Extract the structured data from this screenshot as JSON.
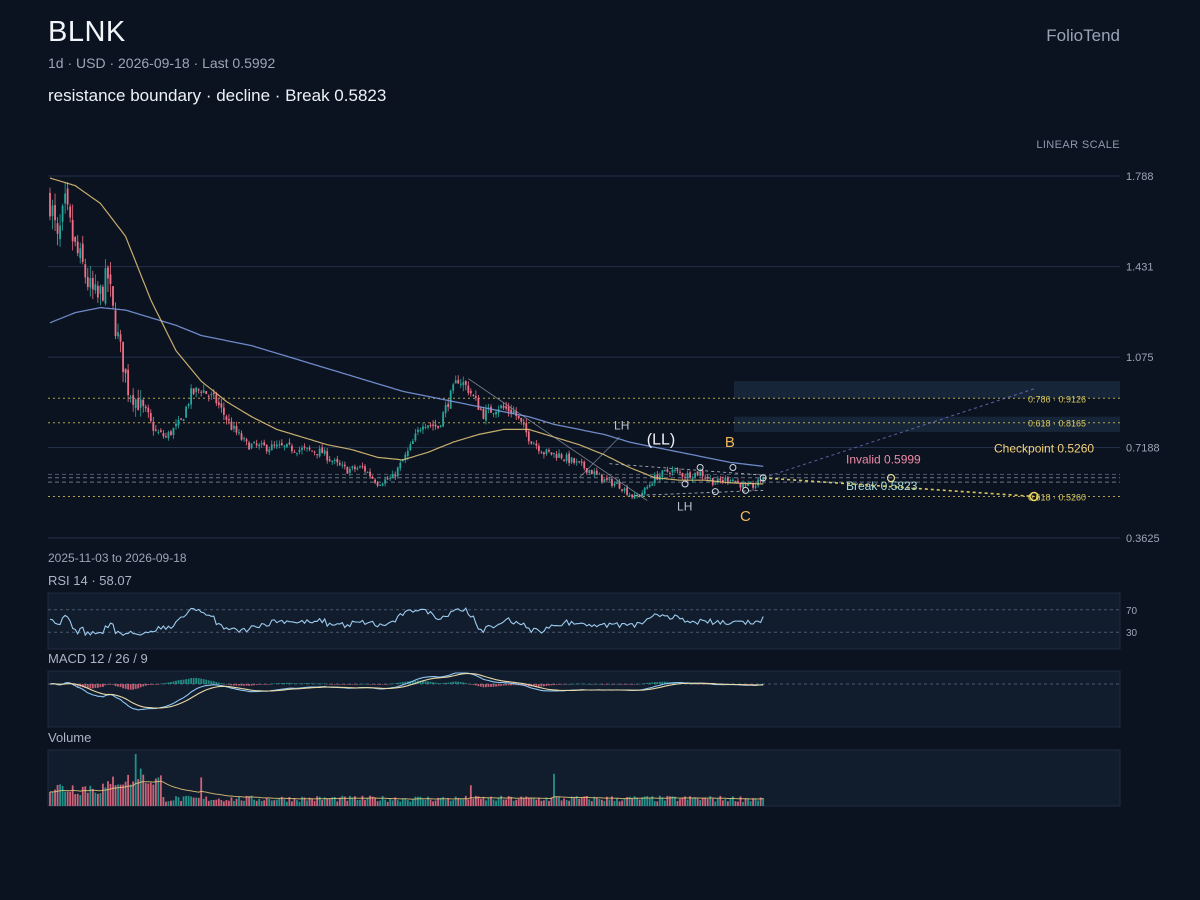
{
  "header": {
    "symbol": "BLNK",
    "subtitle": "1d · USD · 2026-09-18 · Last 0.5992",
    "note": "resistance boundary · decline · Break 0.5823",
    "brand": "FolioTend",
    "scale_label": "LINEAR SCALE",
    "date_range": "2025-11-03 to 2026-09-18"
  },
  "panels": {
    "rsi_label": "RSI 14 · 58.07",
    "macd_label": "MACD 12 / 26 / 9",
    "volume_label": "Volume"
  },
  "colors": {
    "background": "#0c1320",
    "up": "#26a69a",
    "down": "#ef6f86",
    "ma_fast": "#e8c97a",
    "ma_slow": "#7f9fe6",
    "rsi_line": "#9ccbef",
    "level": "#d8c75c",
    "annot": "#f0b85a"
  },
  "chart_data": {
    "type": "candlestick",
    "title": "BLNK",
    "x_start": "2025-11-03",
    "x_end": "2026-09-18",
    "y_ticks": [
      "1.788",
      "1.431",
      "1.075",
      "0.7188",
      "0.3625"
    ],
    "ylim": [
      0.3625,
      1.788
    ],
    "scale": "linear",
    "close_path": [
      [
        0,
        1.7
      ],
      [
        3,
        1.52
      ],
      [
        6,
        1.66
      ],
      [
        10,
        1.5
      ],
      [
        13,
        1.43
      ],
      [
        16,
        1.34
      ],
      [
        19,
        1.3
      ],
      [
        23,
        1.39
      ],
      [
        25,
        1.25
      ],
      [
        28,
        1.1
      ],
      [
        31,
        0.95
      ],
      [
        36,
        0.88
      ],
      [
        42,
        0.78
      ],
      [
        46,
        0.76
      ],
      [
        52,
        0.82
      ],
      [
        56,
        0.93
      ],
      [
        60,
        0.95
      ],
      [
        66,
        0.9
      ],
      [
        72,
        0.8
      ],
      [
        78,
        0.73
      ],
      [
        84,
        0.72
      ],
      [
        92,
        0.72
      ],
      [
        100,
        0.71
      ],
      [
        108,
        0.7
      ],
      [
        114,
        0.65
      ],
      [
        118,
        0.63
      ],
      [
        124,
        0.64
      ],
      [
        130,
        0.58
      ],
      [
        136,
        0.6
      ],
      [
        142,
        0.7
      ],
      [
        148,
        0.82
      ],
      [
        154,
        0.8
      ],
      [
        158,
        0.9
      ],
      [
        162,
        0.99
      ],
      [
        166,
        0.95
      ],
      [
        172,
        0.85
      ],
      [
        178,
        0.88
      ],
      [
        184,
        0.86
      ],
      [
        190,
        0.76
      ],
      [
        196,
        0.7
      ],
      [
        202,
        0.69
      ],
      [
        208,
        0.66
      ],
      [
        214,
        0.63
      ],
      [
        220,
        0.59
      ],
      [
        226,
        0.57
      ],
      [
        232,
        0.52
      ],
      [
        236,
        0.55
      ],
      [
        240,
        0.6
      ],
      [
        246,
        0.63
      ],
      [
        252,
        0.61
      ],
      [
        258,
        0.62
      ],
      [
        264,
        0.58
      ],
      [
        270,
        0.6
      ],
      [
        276,
        0.56
      ],
      [
        280,
        0.57
      ],
      [
        283,
        0.5992
      ]
    ],
    "n_bars": 284,
    "ma_fast": [
      [
        0,
        1.78
      ],
      [
        10,
        1.75
      ],
      [
        20,
        1.68
      ],
      [
        30,
        1.55
      ],
      [
        40,
        1.3
      ],
      [
        50,
        1.1
      ],
      [
        60,
        0.98
      ],
      [
        70,
        0.9
      ],
      [
        80,
        0.84
      ],
      [
        90,
        0.79
      ],
      [
        100,
        0.76
      ],
      [
        110,
        0.73
      ],
      [
        120,
        0.71
      ],
      [
        130,
        0.68
      ],
      [
        140,
        0.67
      ],
      [
        150,
        0.7
      ],
      [
        160,
        0.74
      ],
      [
        170,
        0.77
      ],
      [
        180,
        0.79
      ],
      [
        190,
        0.79
      ],
      [
        200,
        0.76
      ],
      [
        210,
        0.73
      ],
      [
        220,
        0.69
      ],
      [
        230,
        0.64
      ],
      [
        240,
        0.6
      ],
      [
        250,
        0.59
      ],
      [
        260,
        0.59
      ],
      [
        270,
        0.58
      ],
      [
        283,
        0.575
      ]
    ],
    "ma_slow": [
      [
        0,
        1.21
      ],
      [
        10,
        1.25
      ],
      [
        20,
        1.27
      ],
      [
        30,
        1.26
      ],
      [
        40,
        1.23
      ],
      [
        50,
        1.2
      ],
      [
        60,
        1.16
      ],
      [
        70,
        1.14
      ],
      [
        80,
        1.12
      ],
      [
        90,
        1.09
      ],
      [
        100,
        1.06
      ],
      [
        110,
        1.03
      ],
      [
        120,
        1.0
      ],
      [
        130,
        0.97
      ],
      [
        140,
        0.94
      ],
      [
        150,
        0.92
      ],
      [
        160,
        0.9
      ],
      [
        170,
        0.88
      ],
      [
        180,
        0.86
      ],
      [
        190,
        0.84
      ],
      [
        200,
        0.81
      ],
      [
        210,
        0.79
      ],
      [
        220,
        0.77
      ],
      [
        230,
        0.74
      ],
      [
        240,
        0.72
      ],
      [
        250,
        0.7
      ],
      [
        260,
        0.68
      ],
      [
        270,
        0.66
      ],
      [
        283,
        0.645
      ]
    ],
    "levels": [
      {
        "label": "Invalid 0.5999",
        "value": 0.5999,
        "style": "dashed"
      },
      {
        "label": "Break 0.5823",
        "value": 0.5823,
        "style": "dashed"
      },
      {
        "label": "0.786 · 0.9126",
        "value": 0.9126,
        "style": "dotted"
      },
      {
        "label": "0.618 · 0.8165",
        "value": 0.8165,
        "style": "dotted"
      },
      {
        "label": "0.618 · 0.5260",
        "value": 0.526,
        "style": "dotted"
      }
    ],
    "checkpoint": {
      "label": "Checkpoint 0.5260",
      "value": 0.526
    },
    "annotations": [
      {
        "text": "LH",
        "bar": 227,
        "value": 0.79
      },
      {
        "text": "(LL)",
        "bar": 240,
        "value": 0.73
      },
      {
        "text": "LH",
        "bar": 252,
        "value": 0.47
      },
      {
        "text": "B",
        "bar": 271,
        "value": 0.72
      },
      {
        "text": "C",
        "bar": 277,
        "value": 0.43
      }
    ],
    "rsi": {
      "last": 58.07,
      "levels": [
        70,
        30
      ]
    },
    "macd": {
      "fast": 12,
      "slow": 26,
      "signal": 9
    }
  }
}
